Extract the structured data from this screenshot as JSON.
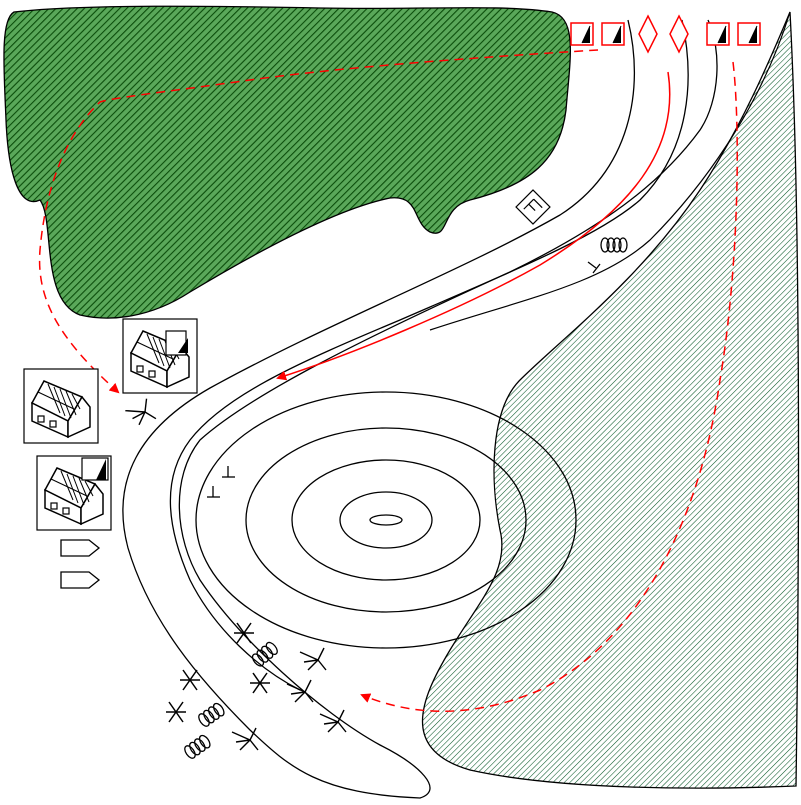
{
  "map": {
    "background": "#ffffff",
    "line_color": "#000000",
    "route_color": "#ff0000",
    "forest_color": "#1e7a1e",
    "woodland_hatch_color": "#0a5a2a",
    "symbols": {
      "unit_red": "red-unit-square-icon",
      "unit_red_diamond": "red-diamond-icon",
      "house": "house-icon",
      "arrow_flag": "arrow-flag-icon",
      "wire_coil": "wire-coil-icon",
      "obstacle_x": "obstacle-x-icon",
      "trench_tick": "trench-tick-icon",
      "gun_fork": "fork-obstacle-icon"
    }
  }
}
